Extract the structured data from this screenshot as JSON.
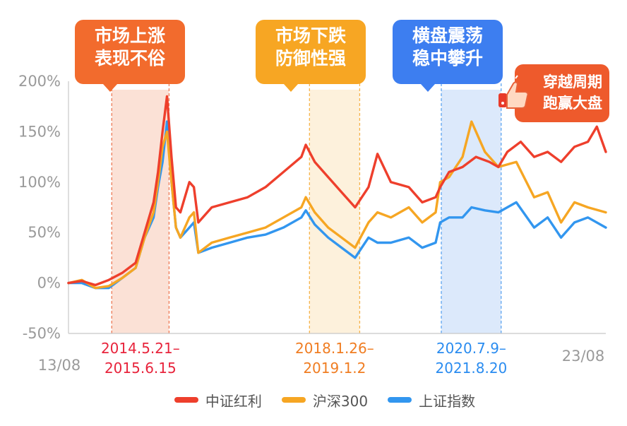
{
  "chart_data": {
    "type": "line",
    "ylim": [
      -50,
      200
    ],
    "y_ticks": [
      "200%",
      "150%",
      "100%",
      "50%",
      "0%",
      "-50%"
    ],
    "x_start_label": "13/08",
    "x_end_label": "23/08",
    "x_range": [
      "2013-08",
      "2023-08"
    ],
    "series": [
      {
        "name": "中证红利",
        "color": "#ee3f2c",
        "points": [
          [
            "2013-08",
            0
          ],
          [
            "2013-11",
            2
          ],
          [
            "2014-02",
            -2
          ],
          [
            "2014-05",
            3
          ],
          [
            "2014-08",
            10
          ],
          [
            "2014-11",
            20
          ],
          [
            "2015-01",
            50
          ],
          [
            "2015-03",
            80
          ],
          [
            "2015-04",
            110
          ],
          [
            "2015-05",
            150
          ],
          [
            "2015-06",
            185
          ],
          [
            "2015-07",
            125
          ],
          [
            "2015-08",
            75
          ],
          [
            "2015-09",
            70
          ],
          [
            "2015-11",
            100
          ],
          [
            "2015-12",
            95
          ],
          [
            "2016-01",
            60
          ],
          [
            "2016-04",
            75
          ],
          [
            "2016-08",
            80
          ],
          [
            "2016-12",
            85
          ],
          [
            "2017-04",
            95
          ],
          [
            "2017-08",
            110
          ],
          [
            "2017-12",
            125
          ],
          [
            "2018-01",
            137
          ],
          [
            "2018-03",
            120
          ],
          [
            "2018-06",
            105
          ],
          [
            "2018-09",
            90
          ],
          [
            "2018-12",
            75
          ],
          [
            "2019-03",
            95
          ],
          [
            "2019-05",
            128
          ],
          [
            "2019-08",
            100
          ],
          [
            "2019-12",
            95
          ],
          [
            "2020-03",
            80
          ],
          [
            "2020-06",
            85
          ],
          [
            "2020-07",
            95
          ],
          [
            "2020-09",
            110
          ],
          [
            "2020-12",
            115
          ],
          [
            "2021-03",
            125
          ],
          [
            "2021-06",
            120
          ],
          [
            "2021-08",
            115
          ],
          [
            "2021-10",
            130
          ],
          [
            "2022-01",
            140
          ],
          [
            "2022-04",
            125
          ],
          [
            "2022-07",
            130
          ],
          [
            "2022-10",
            120
          ],
          [
            "2023-01",
            135
          ],
          [
            "2023-04",
            140
          ],
          [
            "2023-06",
            155
          ],
          [
            "2023-08",
            130
          ]
        ]
      },
      {
        "name": "沪深300",
        "color": "#f6a623",
        "points": [
          [
            "2013-08",
            0
          ],
          [
            "2013-11",
            3
          ],
          [
            "2014-02",
            -5
          ],
          [
            "2014-05",
            -3
          ],
          [
            "2014-08",
            5
          ],
          [
            "2014-11",
            15
          ],
          [
            "2015-01",
            45
          ],
          [
            "2015-03",
            70
          ],
          [
            "2015-04",
            100
          ],
          [
            "2015-05",
            135
          ],
          [
            "2015-06",
            150
          ],
          [
            "2015-07",
            100
          ],
          [
            "2015-08",
            55
          ],
          [
            "2015-09",
            45
          ],
          [
            "2015-11",
            65
          ],
          [
            "2015-12",
            70
          ],
          [
            "2016-01",
            30
          ],
          [
            "2016-04",
            40
          ],
          [
            "2016-08",
            45
          ],
          [
            "2016-12",
            50
          ],
          [
            "2017-04",
            55
          ],
          [
            "2017-08",
            65
          ],
          [
            "2017-12",
            75
          ],
          [
            "2018-01",
            85
          ],
          [
            "2018-03",
            70
          ],
          [
            "2018-06",
            55
          ],
          [
            "2018-09",
            45
          ],
          [
            "2018-12",
            35
          ],
          [
            "2019-03",
            60
          ],
          [
            "2019-05",
            70
          ],
          [
            "2019-08",
            65
          ],
          [
            "2019-12",
            75
          ],
          [
            "2020-03",
            60
          ],
          [
            "2020-06",
            70
          ],
          [
            "2020-07",
            100
          ],
          [
            "2020-09",
            105
          ],
          [
            "2020-12",
            125
          ],
          [
            "2021-02",
            160
          ],
          [
            "2021-05",
            130
          ],
          [
            "2021-08",
            115
          ],
          [
            "2021-12",
            120
          ],
          [
            "2022-04",
            85
          ],
          [
            "2022-07",
            90
          ],
          [
            "2022-10",
            60
          ],
          [
            "2023-01",
            80
          ],
          [
            "2023-04",
            75
          ],
          [
            "2023-08",
            70
          ]
        ]
      },
      {
        "name": "上证指数",
        "color": "#3296ef",
        "points": [
          [
            "2013-08",
            0
          ],
          [
            "2013-11",
            0
          ],
          [
            "2014-02",
            -5
          ],
          [
            "2014-05",
            -5
          ],
          [
            "2014-08",
            5
          ],
          [
            "2014-11",
            15
          ],
          [
            "2015-01",
            45
          ],
          [
            "2015-03",
            65
          ],
          [
            "2015-04",
            95
          ],
          [
            "2015-05",
            120
          ],
          [
            "2015-06",
            160
          ],
          [
            "2015-07",
            100
          ],
          [
            "2015-08",
            55
          ],
          [
            "2015-09",
            45
          ],
          [
            "2015-11",
            55
          ],
          [
            "2015-12",
            60
          ],
          [
            "2016-01",
            30
          ],
          [
            "2016-04",
            35
          ],
          [
            "2016-08",
            40
          ],
          [
            "2016-12",
            45
          ],
          [
            "2017-04",
            48
          ],
          [
            "2017-08",
            55
          ],
          [
            "2017-12",
            65
          ],
          [
            "2018-01",
            72
          ],
          [
            "2018-03",
            58
          ],
          [
            "2018-06",
            45
          ],
          [
            "2018-09",
            35
          ],
          [
            "2018-12",
            25
          ],
          [
            "2019-03",
            45
          ],
          [
            "2019-05",
            40
          ],
          [
            "2019-08",
            40
          ],
          [
            "2019-12",
            45
          ],
          [
            "2020-03",
            35
          ],
          [
            "2020-06",
            40
          ],
          [
            "2020-07",
            60
          ],
          [
            "2020-09",
            65
          ],
          [
            "2020-12",
            65
          ],
          [
            "2021-02",
            75
          ],
          [
            "2021-05",
            72
          ],
          [
            "2021-08",
            70
          ],
          [
            "2021-12",
            80
          ],
          [
            "2022-04",
            55
          ],
          [
            "2022-07",
            65
          ],
          [
            "2022-10",
            45
          ],
          [
            "2023-01",
            60
          ],
          [
            "2023-04",
            65
          ],
          [
            "2023-08",
            55
          ]
        ]
      }
    ],
    "shaded_periods": [
      {
        "start": "2014-05-21",
        "end": "2015-06-15",
        "range_line1": "2014.5.21–",
        "range_line2": "2015.6.15",
        "label_line1": "市场上涨",
        "label_line2": "表现不俗",
        "fill": "#fbe1d6",
        "line_color": "#ee7a55",
        "callout_color": "#f26b2d",
        "text_color": "#e8243c"
      },
      {
        "start": "2018-01-26",
        "end": "2019-01-02",
        "range_line1": "2018.1.26–",
        "range_line2": "2019.1.2",
        "label_line1": "市场下跌",
        "label_line2": "防御性强",
        "fill": "#fdf1dc",
        "line_color": "#f6b24a",
        "callout_color": "#f7a623",
        "text_color": "#f07d22"
      },
      {
        "start": "2020-07-09",
        "end": "2021-08-20",
        "range_line1": "2020.7.9–",
        "range_line2": "2021.8.20",
        "label_line1": "横盘震荡",
        "label_line2": "稳中攀升",
        "fill": "#dce9fb",
        "line_color": "#5ea5f0",
        "callout_color": "#3d7ef0",
        "text_color": "#2a8cf0"
      }
    ],
    "badge_line1": "穿越周期",
    "badge_line2": "跑赢大盘",
    "badge_color": "#ee5a2c",
    "badge_icon": "thumbs-up-hand-icon",
    "grid": false
  }
}
